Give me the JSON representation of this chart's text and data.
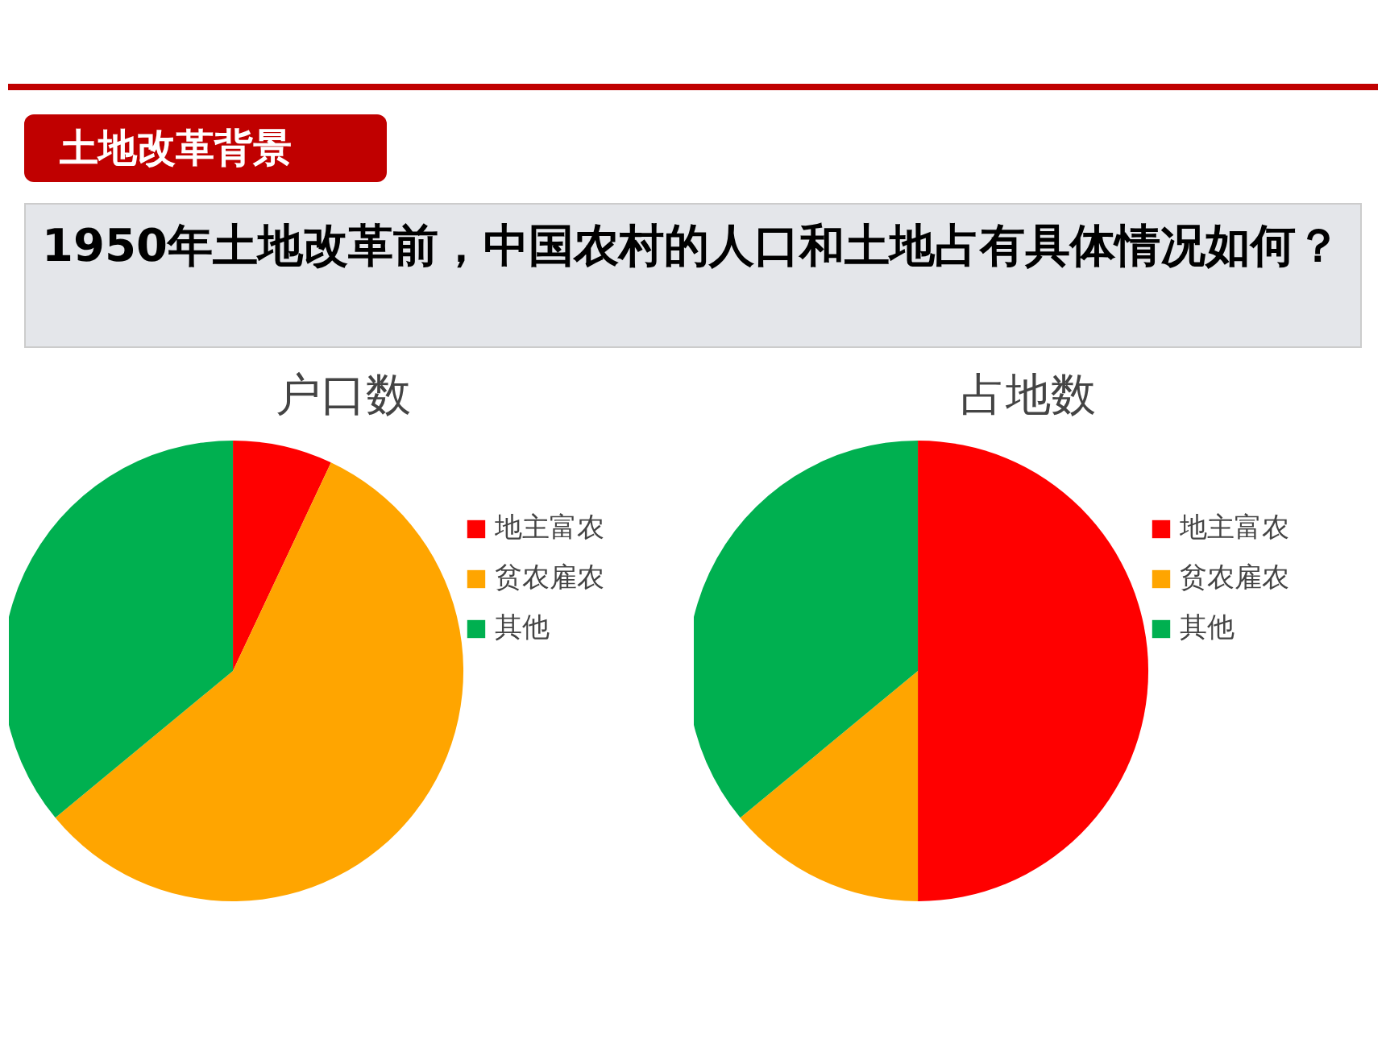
{
  "chart_data": [
    {
      "type": "pie",
      "title": "户口数",
      "annotations": [
        "土地改革背景",
        "1950年土地改革前，中国农村的人口和土地占有具体情况如何？"
      ],
      "categories": [
        "地主富农",
        "贫农雇农",
        "其他"
      ],
      "values": [
        7,
        57,
        36
      ],
      "colors": [
        "#ff0000",
        "#ffa500",
        "#00b050"
      ],
      "legend": "right"
    },
    {
      "type": "pie",
      "title": "占地数",
      "categories": [
        "地主富农",
        "贫农雇农",
        "其他"
      ],
      "values": [
        50,
        14,
        36
      ],
      "colors": [
        "#ff0000",
        "#ffa500",
        "#00b050"
      ],
      "legend": "right"
    }
  ]
}
